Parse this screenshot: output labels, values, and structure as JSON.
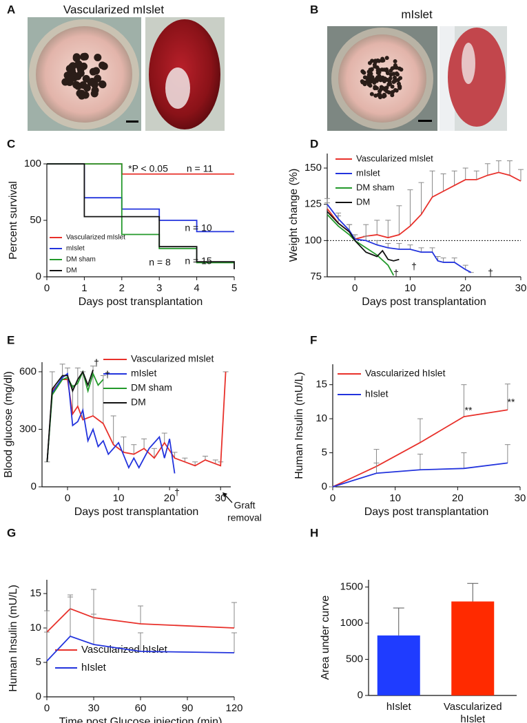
{
  "panels": [
    {
      "label": "A",
      "title": "Vascularized mIslet"
    },
    {
      "label": "B",
      "title": "mIslet"
    }
  ],
  "chart_data": [
    {
      "type": "step",
      "panel_label": "C",
      "xlabel": "Days post transplantation",
      "ylabel": "Percent survival",
      "xlim": [
        0,
        5
      ],
      "ylim": [
        0,
        100
      ],
      "xticks": [
        0,
        1,
        2,
        3,
        4,
        5
      ],
      "yticks": [
        0,
        50,
        100
      ],
      "legend": "lower left",
      "series": [
        {
          "name": "Vascularized mIslet",
          "color": "#e8302a",
          "x": [
            0,
            2,
            5
          ],
          "values": [
            100,
            91,
            91
          ]
        },
        {
          "name": "mIslet",
          "color": "#2233dd",
          "x": [
            0,
            1,
            2,
            3,
            4,
            5
          ],
          "values": [
            100,
            70,
            60,
            50,
            40,
            40
          ]
        },
        {
          "name": "DM sham",
          "color": "#22992a",
          "x": [
            0,
            2,
            3,
            4,
            5
          ],
          "values": [
            100,
            37.5,
            25,
            12.5,
            12.5
          ]
        },
        {
          "name": "DM",
          "color": "#111111",
          "x": [
            0,
            1,
            3,
            4,
            5
          ],
          "values": [
            100,
            53.3,
            26.7,
            13.3,
            6.7
          ]
        }
      ],
      "annotations": [
        {
          "text": "*P < 0.05",
          "color": "#e8302a"
        },
        {
          "text": "n = 11",
          "color": "#e8302a"
        },
        {
          "text": "n = 10",
          "color": "#2233dd"
        },
        {
          "text": "n = 8",
          "color": "#22992a"
        },
        {
          "text": "n = 15",
          "color": "#111111"
        }
      ]
    },
    {
      "type": "line",
      "panel_label": "D",
      "xlabel": "Days post transplantation",
      "ylabel": "Weight change (%)",
      "xlim": [
        -5,
        30
      ],
      "ylim": [
        75,
        160
      ],
      "xticks": [
        0,
        10,
        20,
        30
      ],
      "yticks": [
        75,
        100,
        125,
        150
      ],
      "legend": "upper left",
      "hline": 100,
      "series": [
        {
          "name": "Vascularized mIslet",
          "color": "#e8302a",
          "x": [
            -5,
            -3,
            -1,
            0,
            2,
            4,
            6,
            8,
            10,
            12,
            14,
            16,
            18,
            20,
            22,
            24,
            26,
            28,
            30
          ],
          "values": [
            122,
            112,
            106,
            101,
            103,
            104,
            102,
            104,
            110,
            118,
            130,
            134,
            138,
            142,
            142,
            145,
            147,
            145,
            141
          ],
          "errors": [
            4,
            5,
            5,
            3,
            8,
            10,
            12,
            20,
            25,
            22,
            18,
            12,
            10,
            8,
            6,
            8,
            8,
            10,
            8
          ]
        },
        {
          "name": "mIslet",
          "color": "#2233dd",
          "x": [
            -5,
            -3,
            -1,
            0,
            2,
            4,
            6,
            8,
            10,
            12,
            14,
            15,
            16,
            18,
            20,
            21
          ],
          "values": [
            125,
            115,
            107,
            101,
            100,
            97,
            95,
            94,
            94,
            92,
            92,
            86,
            85,
            85,
            80,
            78
          ],
          "errors": [
            4,
            4,
            4,
            3,
            3,
            3,
            3,
            4,
            3,
            3,
            3,
            3,
            3,
            3,
            3,
            0
          ]
        },
        {
          "name": "DM sham",
          "color": "#22992a",
          "x": [
            -5,
            -3,
            -1,
            0,
            2,
            4,
            6,
            7
          ],
          "values": [
            118,
            110,
            104,
            100,
            95,
            90,
            83,
            76
          ]
        },
        {
          "name": "DM",
          "color": "#111111",
          "x": [
            -5,
            -3,
            -1,
            0,
            2,
            4,
            5,
            6,
            7,
            8
          ],
          "values": [
            120,
            112,
            106,
            100,
            92,
            89,
            93,
            87,
            86,
            87
          ]
        }
      ],
      "annotations": [
        {
          "text": "†",
          "color": "#111111"
        },
        {
          "text": "†",
          "color": "#2233dd"
        },
        {
          "text": "†",
          "color": "#22992a"
        }
      ]
    },
    {
      "type": "line",
      "panel_label": "E",
      "xlabel": "Days post transplantation",
      "ylabel": "Blood glucose (mg/dl)",
      "xlim": [
        -5,
        32
      ],
      "ylim": [
        0,
        650
      ],
      "xticks": [
        0,
        10,
        20,
        30
      ],
      "yticks": [
        0,
        300,
        600
      ],
      "legend": "upper right",
      "series": [
        {
          "name": "Vascularized mIslet",
          "color": "#e8302a",
          "x": [
            -4,
            -3,
            -1,
            0,
            1,
            2,
            3,
            5,
            7,
            9,
            11,
            13,
            15,
            17,
            19,
            21,
            23,
            25,
            27,
            29,
            30,
            31
          ],
          "values": [
            130,
            500,
            560,
            560,
            380,
            420,
            350,
            370,
            330,
            220,
            180,
            170,
            200,
            150,
            230,
            150,
            130,
            110,
            140,
            120,
            110,
            600
          ],
          "errors": [
            0,
            100,
            80,
            60,
            150,
            200,
            250,
            260,
            250,
            150,
            80,
            50,
            50,
            50,
            50,
            30,
            20,
            20,
            20,
            20,
            20,
            0
          ]
        },
        {
          "name": "mIslet",
          "color": "#2233dd",
          "x": [
            -4,
            -3,
            -1,
            0,
            1,
            2,
            3,
            4,
            5,
            6,
            7,
            8,
            10,
            12,
            13,
            14,
            16,
            18,
            19,
            20,
            21
          ],
          "values": [
            130,
            490,
            570,
            590,
            320,
            340,
            400,
            240,
            300,
            210,
            240,
            170,
            230,
            100,
            150,
            100,
            200,
            260,
            150,
            250,
            70
          ]
        },
        {
          "name": "DM sham",
          "color": "#22992a",
          "x": [
            -4,
            -3,
            -1,
            0,
            1,
            2,
            3,
            4,
            5,
            6,
            7
          ],
          "values": [
            130,
            480,
            560,
            570,
            520,
            540,
            600,
            500,
            590,
            530,
            560
          ]
        },
        {
          "name": "DM",
          "color": "#111111",
          "x": [
            -4,
            -3,
            -1,
            0,
            1,
            2,
            3,
            4,
            5
          ],
          "values": [
            130,
            510,
            580,
            580,
            500,
            560,
            600,
            530,
            610
          ]
        }
      ],
      "annotations": [
        {
          "text": "†",
          "color": "#111111"
        },
        {
          "text": "†",
          "color": "#22992a"
        },
        {
          "text": "†",
          "color": "#2233dd"
        },
        {
          "text": "Graft",
          "color": "#111111"
        },
        {
          "text": "removal",
          "color": "#111111"
        }
      ]
    },
    {
      "type": "line",
      "panel_label": "F",
      "xlabel": "Days post transplantation",
      "ylabel": "Human Insulin (mU/L)",
      "xlim": [
        0,
        30
      ],
      "ylim": [
        0,
        18
      ],
      "xticks": [
        0,
        10,
        20,
        30
      ],
      "yticks": [
        0,
        5,
        10,
        15
      ],
      "legend": "upper left",
      "series": [
        {
          "name": "Vascularized hIslet",
          "color": "#e8302a",
          "x": [
            0,
            7,
            14,
            21,
            28
          ],
          "values": [
            0,
            3,
            6.5,
            10.3,
            11.3
          ],
          "errors": [
            0,
            2.5,
            3.5,
            4.7,
            3.8
          ]
        },
        {
          "name": "hIslet",
          "color": "#2233dd",
          "x": [
            0,
            7,
            14,
            21,
            28
          ],
          "values": [
            0,
            2,
            2.5,
            2.7,
            3.5
          ],
          "errors": [
            0,
            1.5,
            2.3,
            2.3,
            2.7
          ]
        }
      ],
      "annotations": [
        {
          "text": "**",
          "color": "#111111"
        },
        {
          "text": "**",
          "color": "#111111"
        }
      ]
    },
    {
      "type": "line",
      "panel_label": "G",
      "xlabel": "Time post Glucose injection (min)",
      "ylabel": "Human Insulin (mU/L)",
      "xlim": [
        0,
        120
      ],
      "ylim": [
        0,
        17
      ],
      "xticks": [
        0,
        30,
        60,
        90,
        120
      ],
      "yticks": [
        0,
        5,
        10,
        15
      ],
      "legend": "lower left",
      "series": [
        {
          "name": "Vascularized hIslet",
          "color": "#e8302a",
          "x": [
            0,
            15,
            30,
            60,
            120
          ],
          "values": [
            9.4,
            12.8,
            11.5,
            10.6,
            10
          ],
          "errors": [
            0,
            2,
            4.1,
            2.6,
            3.7
          ]
        },
        {
          "name": "hIslet",
          "color": "#2233dd",
          "x": [
            0,
            15,
            30,
            60,
            120
          ],
          "values": [
            5.2,
            8.8,
            7.6,
            6.6,
            6.4
          ],
          "errors": [
            7.3,
            5.7,
            4.4,
            2.7,
            2.9
          ]
        }
      ]
    },
    {
      "type": "bar",
      "panel_label": "H",
      "ylabel": "Area under curve",
      "ylim": [
        0,
        1600
      ],
      "yticks": [
        0,
        500,
        1000,
        1500
      ],
      "categories": [
        "hIslet",
        "Vascularized hIslet"
      ],
      "values": [
        830,
        1300
      ],
      "errors": [
        380,
        250
      ],
      "colors": [
        "#1f3cff",
        "#ff2a00"
      ]
    }
  ]
}
